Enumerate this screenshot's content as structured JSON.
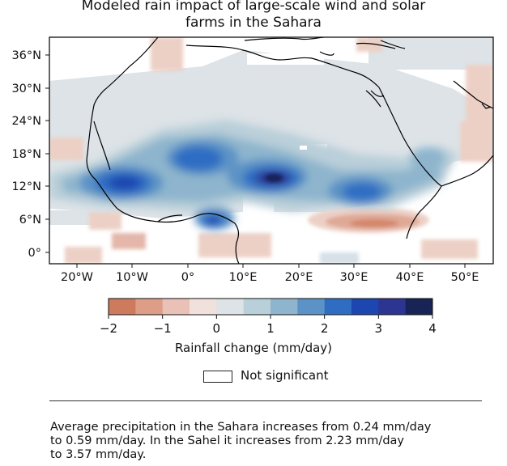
{
  "title": {
    "line1": "Modeled rain impact of large-scale wind and solar",
    "line2": "farms in the Sahara"
  },
  "map": {
    "lat_labels": [
      "36°N",
      "30°N",
      "24°N",
      "18°N",
      "12°N",
      "6°N",
      "0°"
    ],
    "lon_labels": [
      "20°W",
      "10°W",
      "0°",
      "10°E",
      "20°E",
      "30°E",
      "40°E",
      "50°E"
    ],
    "lon_range": [
      -25,
      55
    ],
    "lat_range": [
      -2,
      40
    ]
  },
  "colorbar": {
    "title": "Rainfall change (mm/day)",
    "tick_labels": [
      "−2",
      "−1",
      "0",
      "1",
      "2",
      "3",
      "4"
    ],
    "colors": [
      "#cd7a5d",
      "#dd9d87",
      "#e9c1b6",
      "#f1e1dd",
      "#dde3e7",
      "#b9cfd9",
      "#8eb5cd",
      "#5b93c6",
      "#2f6dc3",
      "#1c46b0",
      "#2d3592",
      "#182356"
    ]
  },
  "legend": {
    "not_significant": "Not significant"
  },
  "caption": {
    "lines": [
      "Average precipitation in the Sahara increases from 0.24 mm/day",
      "to 0.59 mm/day. In the Sahel it increases from 2.23 mm/day",
      "to 3.57 mm/day."
    ]
  }
}
